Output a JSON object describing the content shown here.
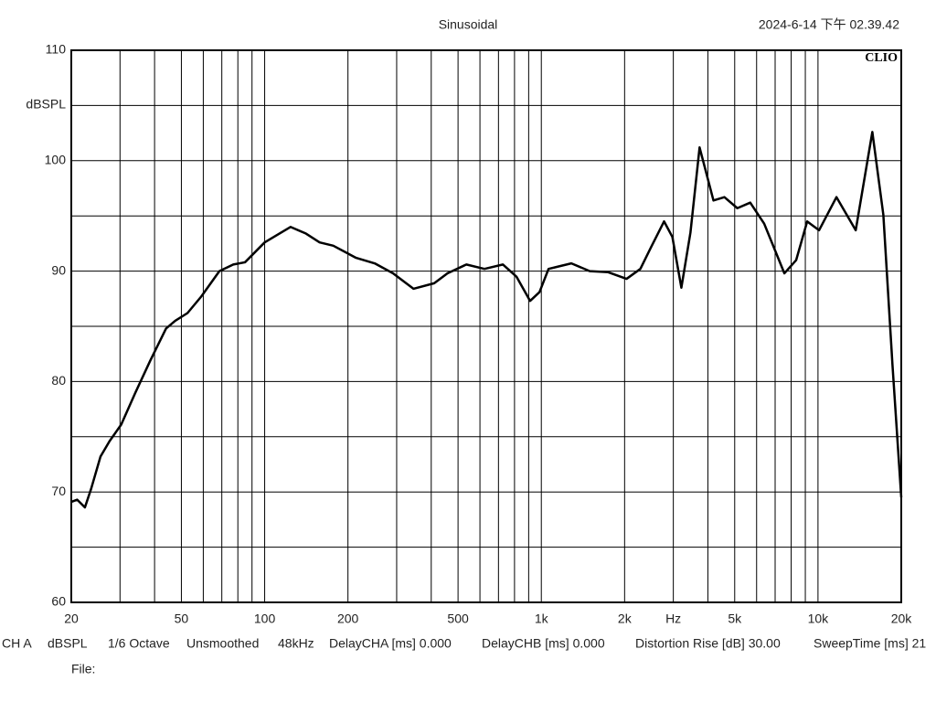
{
  "chart_data": {
    "type": "line",
    "title": "Sinusoidal",
    "timestamp": "2024-6-14 下午 02.39.42",
    "brand": "CLIO",
    "y_label": "dBSPL",
    "x": [
      20,
      21,
      22.4,
      23.6,
      25.5,
      27.5,
      30.3,
      34.1,
      38.6,
      44,
      47.5,
      52.6,
      59,
      68.6,
      77,
      84.9,
      100,
      124,
      141,
      158,
      177,
      214,
      250,
      291,
      345,
      410,
      458,
      536,
      623,
      726,
      813,
      911,
      985,
      1062,
      1146,
      1284,
      1496,
      1744,
      2033,
      2280,
      2496,
      2778,
      2976,
      3208,
      3460,
      3733,
      4190,
      4590,
      5110,
      5690,
      6390,
      7560,
      8340,
      9140,
      10090,
      11660,
      13690,
      15720,
      17230,
      18590,
      20000
    ],
    "values": [
      69.1,
      69.3,
      68.6,
      70.3,
      73.2,
      74.6,
      76.1,
      79.0,
      81.9,
      84.8,
      85.5,
      86.2,
      87.7,
      90.0,
      90.6,
      90.8,
      92.6,
      94.0,
      93.4,
      92.6,
      92.3,
      91.2,
      90.7,
      89.8,
      88.4,
      88.9,
      89.8,
      90.6,
      90.2,
      90.6,
      89.5,
      87.3,
      88.1,
      90.2,
      90.4,
      90.7,
      90.0,
      89.9,
      89.3,
      90.2,
      92.2,
      94.5,
      93.1,
      88.5,
      93.5,
      101.2,
      96.4,
      96.7,
      95.7,
      96.2,
      94.3,
      89.8,
      91.0,
      94.5,
      93.7,
      96.7,
      93.7,
      102.6,
      95.1,
      81.5,
      69.5
    ],
    "color": "#000000",
    "log_x": true,
    "grid": true,
    "xlim": [
      20,
      20000
    ],
    "ylim": [
      60,
      110
    ],
    "xticks": [
      20,
      50,
      100,
      200,
      500,
      {
        "value": 1000,
        "label": "1k"
      },
      {
        "value": 2000,
        "label": "2k"
      },
      {
        "value": 3000,
        "label": "Hz"
      },
      {
        "value": 5000,
        "label": "5k"
      },
      {
        "value": 10000,
        "label": "10k"
      },
      {
        "value": 20000,
        "label": "20k"
      }
    ],
    "x_minor_grid": [
      30,
      40,
      60,
      70,
      80,
      90,
      300,
      400,
      600,
      700,
      800,
      900,
      4000,
      6000,
      7000,
      8000,
      9000
    ],
    "yticks": [
      60,
      70,
      80,
      90,
      100,
      110
    ],
    "y_minor_grid": [
      65,
      75,
      85,
      95,
      105
    ],
    "footer_items": [
      "CH A",
      "dBSPL",
      "1/6 Octave",
      "Unsmoothed",
      "48kHz",
      "DelayCHA [ms] 0.000",
      "DelayCHB [ms] 0.000",
      "Distortion Rise [dB] 30.00",
      "SweepTime [ms] 21"
    ],
    "file_label": "File:"
  }
}
